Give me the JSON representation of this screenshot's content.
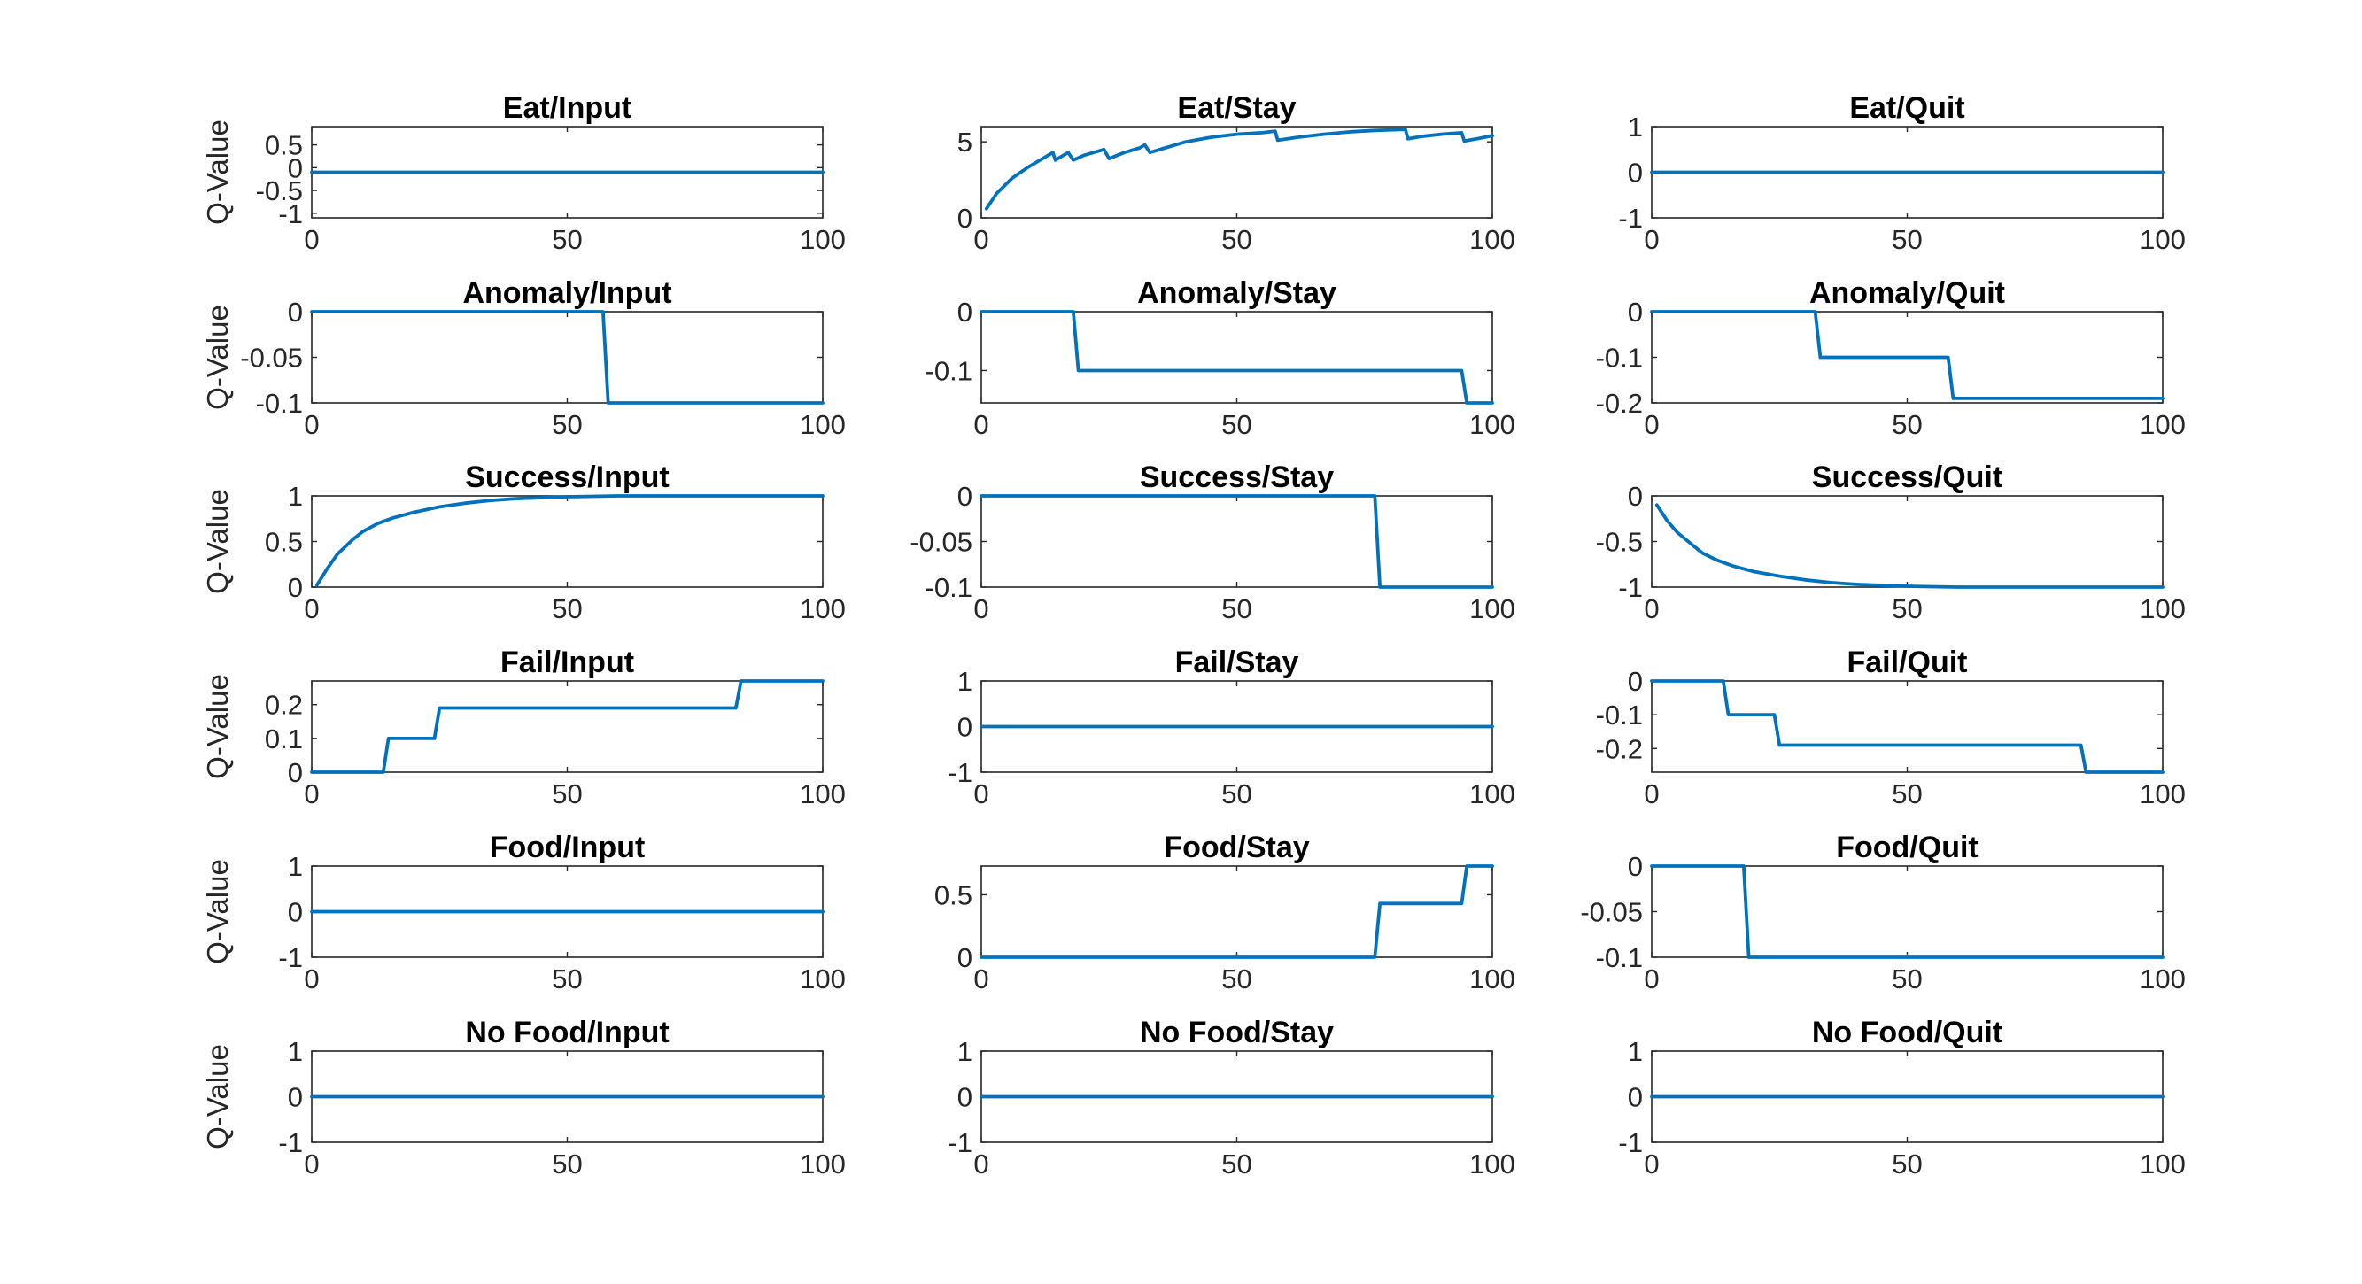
{
  "figure": {
    "series_color": "#0072BD",
    "axis_color": "#262626"
  },
  "chart_data": [
    {
      "type": "line",
      "title": "Eat/Input",
      "ylabel": "Q-Value",
      "xlim": [
        0,
        100
      ],
      "ylim": [
        -1.1,
        0.9
      ],
      "xticks": [
        0,
        50,
        100
      ],
      "xtick_labels": [
        "0",
        "50",
        "100"
      ],
      "yticks": [
        -1,
        -0.5,
        0,
        0.5
      ],
      "ytick_labels": [
        "-1",
        "-0.5",
        "0",
        "0.5"
      ],
      "x": [
        0,
        100
      ],
      "y": [
        -0.1,
        -0.1
      ]
    },
    {
      "type": "line",
      "title": "Eat/Stay",
      "ylabel": "",
      "xlim": [
        0,
        100
      ],
      "ylim": [
        0,
        6
      ],
      "xticks": [
        0,
        50,
        100
      ],
      "xtick_labels": [
        "0",
        "50",
        "100"
      ],
      "yticks": [
        0,
        5
      ],
      "ytick_labels": [
        "0",
        "5"
      ],
      "x": [
        1,
        3,
        6,
        9,
        12,
        14,
        14.5,
        17,
        18,
        20,
        22,
        24,
        25,
        28,
        31,
        32,
        33,
        36,
        40,
        45,
        50,
        55,
        57.5,
        58,
        62,
        67,
        72,
        77,
        82,
        83,
        83.5,
        86,
        90,
        94,
        94.5,
        97,
        100
      ],
      "y": [
        0.6,
        1.6,
        2.6,
        3.3,
        3.9,
        4.3,
        3.8,
        4.3,
        3.8,
        4.1,
        4.3,
        4.5,
        3.9,
        4.3,
        4.6,
        4.8,
        4.3,
        4.6,
        5.0,
        5.3,
        5.5,
        5.6,
        5.7,
        5.1,
        5.3,
        5.5,
        5.65,
        5.75,
        5.8,
        5.8,
        5.2,
        5.35,
        5.5,
        5.6,
        5.05,
        5.2,
        5.4
      ]
    },
    {
      "type": "line",
      "title": "Eat/Quit",
      "ylabel": "",
      "xlim": [
        0,
        100
      ],
      "ylim": [
        -1,
        1
      ],
      "xticks": [
        0,
        50,
        100
      ],
      "xtick_labels": [
        "0",
        "50",
        "100"
      ],
      "yticks": [
        -1,
        0,
        1
      ],
      "ytick_labels": [
        "-1",
        "0",
        "1"
      ],
      "x": [
        0,
        100
      ],
      "y": [
        0,
        0
      ]
    },
    {
      "type": "line",
      "title": "Anomaly/Input",
      "ylabel": "Q-Value",
      "xlim": [
        0,
        100
      ],
      "ylim": [
        -0.1,
        0
      ],
      "xticks": [
        0,
        50,
        100
      ],
      "xtick_labels": [
        "0",
        "50",
        "100"
      ],
      "yticks": [
        -0.1,
        -0.05,
        0
      ],
      "ytick_labels": [
        "-0.1",
        "-0.05",
        "0"
      ],
      "x": [
        0,
        57,
        58,
        100
      ],
      "y": [
        0,
        0,
        -0.1,
        -0.1
      ]
    },
    {
      "type": "line",
      "title": "Anomaly/Stay",
      "ylabel": "",
      "xlim": [
        0,
        100
      ],
      "ylim": [
        -0.155,
        0
      ],
      "xticks": [
        0,
        50,
        100
      ],
      "xtick_labels": [
        "0",
        "50",
        "100"
      ],
      "yticks": [
        -0.1,
        0
      ],
      "ytick_labels": [
        "-0.1",
        "0"
      ],
      "x": [
        0,
        18,
        19,
        94,
        95,
        100
      ],
      "y": [
        0,
        0,
        -0.1,
        -0.1,
        -0.155,
        -0.155
      ]
    },
    {
      "type": "line",
      "title": "Anomaly/Quit",
      "ylabel": "",
      "xlim": [
        0,
        100
      ],
      "ylim": [
        -0.2,
        0
      ],
      "xticks": [
        0,
        50,
        100
      ],
      "xtick_labels": [
        "0",
        "50",
        "100"
      ],
      "yticks": [
        -0.2,
        -0.1,
        0
      ],
      "ytick_labels": [
        "-0.2",
        "-0.1",
        "0"
      ],
      "x": [
        0,
        32,
        33,
        58,
        59,
        100
      ],
      "y": [
        0,
        0,
        -0.1,
        -0.1,
        -0.19,
        -0.19
      ]
    },
    {
      "type": "line",
      "title": "Success/Input",
      "ylabel": "Q-Value",
      "xlim": [
        0,
        100
      ],
      "ylim": [
        0,
        1
      ],
      "xticks": [
        0,
        50,
        100
      ],
      "xtick_labels": [
        "0",
        "50",
        "100"
      ],
      "yticks": [
        0,
        0.5,
        1
      ],
      "ytick_labels": [
        "0",
        "0.5",
        "1"
      ],
      "x": [
        1,
        3,
        5,
        8,
        10,
        13,
        16,
        20,
        25,
        30,
        35,
        40,
        50,
        60,
        70,
        80,
        90,
        100
      ],
      "y": [
        0.02,
        0.2,
        0.36,
        0.52,
        0.61,
        0.7,
        0.76,
        0.82,
        0.88,
        0.92,
        0.95,
        0.97,
        0.99,
        1,
        1,
        1,
        1,
        1
      ]
    },
    {
      "type": "line",
      "title": "Success/Stay",
      "ylabel": "",
      "xlim": [
        0,
        100
      ],
      "ylim": [
        -0.1,
        0
      ],
      "xticks": [
        0,
        50,
        100
      ],
      "xtick_labels": [
        "0",
        "50",
        "100"
      ],
      "yticks": [
        -0.1,
        -0.05,
        0
      ],
      "ytick_labels": [
        "-0.1",
        "-0.05",
        "0"
      ],
      "x": [
        0,
        77,
        78,
        100
      ],
      "y": [
        0,
        0,
        -0.1,
        -0.1
      ]
    },
    {
      "type": "line",
      "title": "Success/Quit",
      "ylabel": "",
      "xlim": [
        0,
        100
      ],
      "ylim": [
        -1,
        0
      ],
      "xticks": [
        0,
        50,
        100
      ],
      "xtick_labels": [
        "0",
        "50",
        "100"
      ],
      "yticks": [
        -1,
        -0.5,
        0
      ],
      "ytick_labels": [
        "-1",
        "-0.5",
        "0"
      ],
      "x": [
        1,
        3,
        5,
        8,
        10,
        13,
        16,
        20,
        25,
        30,
        35,
        40,
        50,
        60,
        70,
        80,
        90,
        100
      ],
      "y": [
        -0.1,
        -0.27,
        -0.4,
        -0.54,
        -0.63,
        -0.71,
        -0.77,
        -0.83,
        -0.88,
        -0.92,
        -0.95,
        -0.97,
        -0.99,
        -1,
        -1,
        -1,
        -1,
        -1
      ]
    },
    {
      "type": "line",
      "title": "Fail/Input",
      "ylabel": "Q-Value",
      "xlim": [
        0,
        100
      ],
      "ylim": [
        0,
        0.27
      ],
      "xticks": [
        0,
        50,
        100
      ],
      "xtick_labels": [
        "0",
        "50",
        "100"
      ],
      "yticks": [
        0,
        0.1,
        0.2
      ],
      "ytick_labels": [
        "0",
        "0.1",
        "0.2"
      ],
      "x": [
        0,
        14,
        15,
        24,
        25,
        83,
        84,
        100
      ],
      "y": [
        0,
        0,
        0.1,
        0.1,
        0.19,
        0.19,
        0.27,
        0.27
      ]
    },
    {
      "type": "line",
      "title": "Fail/Stay",
      "ylabel": "",
      "xlim": [
        0,
        100
      ],
      "ylim": [
        -1,
        1
      ],
      "xticks": [
        0,
        50,
        100
      ],
      "xtick_labels": [
        "0",
        "50",
        "100"
      ],
      "yticks": [
        -1,
        0,
        1
      ],
      "ytick_labels": [
        "-1",
        "0",
        "1"
      ],
      "x": [
        0,
        100
      ],
      "y": [
        0,
        0
      ]
    },
    {
      "type": "line",
      "title": "Fail/Quit",
      "ylabel": "",
      "xlim": [
        0,
        100
      ],
      "ylim": [
        -0.27,
        0
      ],
      "xticks": [
        0,
        50,
        100
      ],
      "xtick_labels": [
        "0",
        "50",
        "100"
      ],
      "yticks": [
        -0.2,
        -0.1,
        0
      ],
      "ytick_labels": [
        "-0.2",
        "-0.1",
        "0"
      ],
      "x": [
        0,
        14,
        15,
        24,
        25,
        84,
        85,
        100
      ],
      "y": [
        0,
        0,
        -0.1,
        -0.1,
        -0.19,
        -0.19,
        -0.27,
        -0.27
      ]
    },
    {
      "type": "line",
      "title": "Food/Input",
      "ylabel": "Q-Value",
      "xlim": [
        0,
        100
      ],
      "ylim": [
        -1,
        1
      ],
      "xticks": [
        0,
        50,
        100
      ],
      "xtick_labels": [
        "0",
        "50",
        "100"
      ],
      "yticks": [
        -1,
        0,
        1
      ],
      "ytick_labels": [
        "-1",
        "0",
        "1"
      ],
      "x": [
        0,
        100
      ],
      "y": [
        0,
        0
      ]
    },
    {
      "type": "line",
      "title": "Food/Stay",
      "ylabel": "",
      "xlim": [
        0,
        100
      ],
      "ylim": [
        0,
        0.73
      ],
      "xticks": [
        0,
        50,
        100
      ],
      "xtick_labels": [
        "0",
        "50",
        "100"
      ],
      "yticks": [
        0,
        0.5
      ],
      "ytick_labels": [
        "0",
        "0.5"
      ],
      "x": [
        0,
        77,
        78,
        94,
        95,
        100
      ],
      "y": [
        0,
        0,
        0.43,
        0.43,
        0.73,
        0.73
      ]
    },
    {
      "type": "line",
      "title": "Food/Quit",
      "ylabel": "",
      "xlim": [
        0,
        100
      ],
      "ylim": [
        -0.1,
        0
      ],
      "xticks": [
        0,
        50,
        100
      ],
      "xtick_labels": [
        "0",
        "50",
        "100"
      ],
      "yticks": [
        -0.1,
        -0.05,
        0
      ],
      "ytick_labels": [
        "-0.1",
        "-0.05",
        "0"
      ],
      "x": [
        0,
        18,
        19,
        100
      ],
      "y": [
        0,
        0,
        -0.1,
        -0.1
      ]
    },
    {
      "type": "line",
      "title": "No Food/Input",
      "ylabel": "Q-Value",
      "xlim": [
        0,
        100
      ],
      "ylim": [
        -1,
        1
      ],
      "xticks": [
        0,
        50,
        100
      ],
      "xtick_labels": [
        "0",
        "50",
        "100"
      ],
      "yticks": [
        -1,
        0,
        1
      ],
      "ytick_labels": [
        "-1",
        "0",
        "1"
      ],
      "x": [
        0,
        100
      ],
      "y": [
        0,
        0
      ]
    },
    {
      "type": "line",
      "title": "No Food/Stay",
      "ylabel": "",
      "xlim": [
        0,
        100
      ],
      "ylim": [
        -1,
        1
      ],
      "xticks": [
        0,
        50,
        100
      ],
      "xtick_labels": [
        "0",
        "50",
        "100"
      ],
      "yticks": [
        -1,
        0,
        1
      ],
      "ytick_labels": [
        "-1",
        "0",
        "1"
      ],
      "x": [
        0,
        100
      ],
      "y": [
        0,
        0
      ]
    },
    {
      "type": "line",
      "title": "No Food/Quit",
      "ylabel": "",
      "xlim": [
        0,
        100
      ],
      "ylim": [
        -1,
        1
      ],
      "xticks": [
        0,
        50,
        100
      ],
      "xtick_labels": [
        "0",
        "50",
        "100"
      ],
      "yticks": [
        -1,
        0,
        1
      ],
      "ytick_labels": [
        "-1",
        "0",
        "1"
      ],
      "x": [
        0,
        100
      ],
      "y": [
        0,
        0
      ]
    }
  ]
}
